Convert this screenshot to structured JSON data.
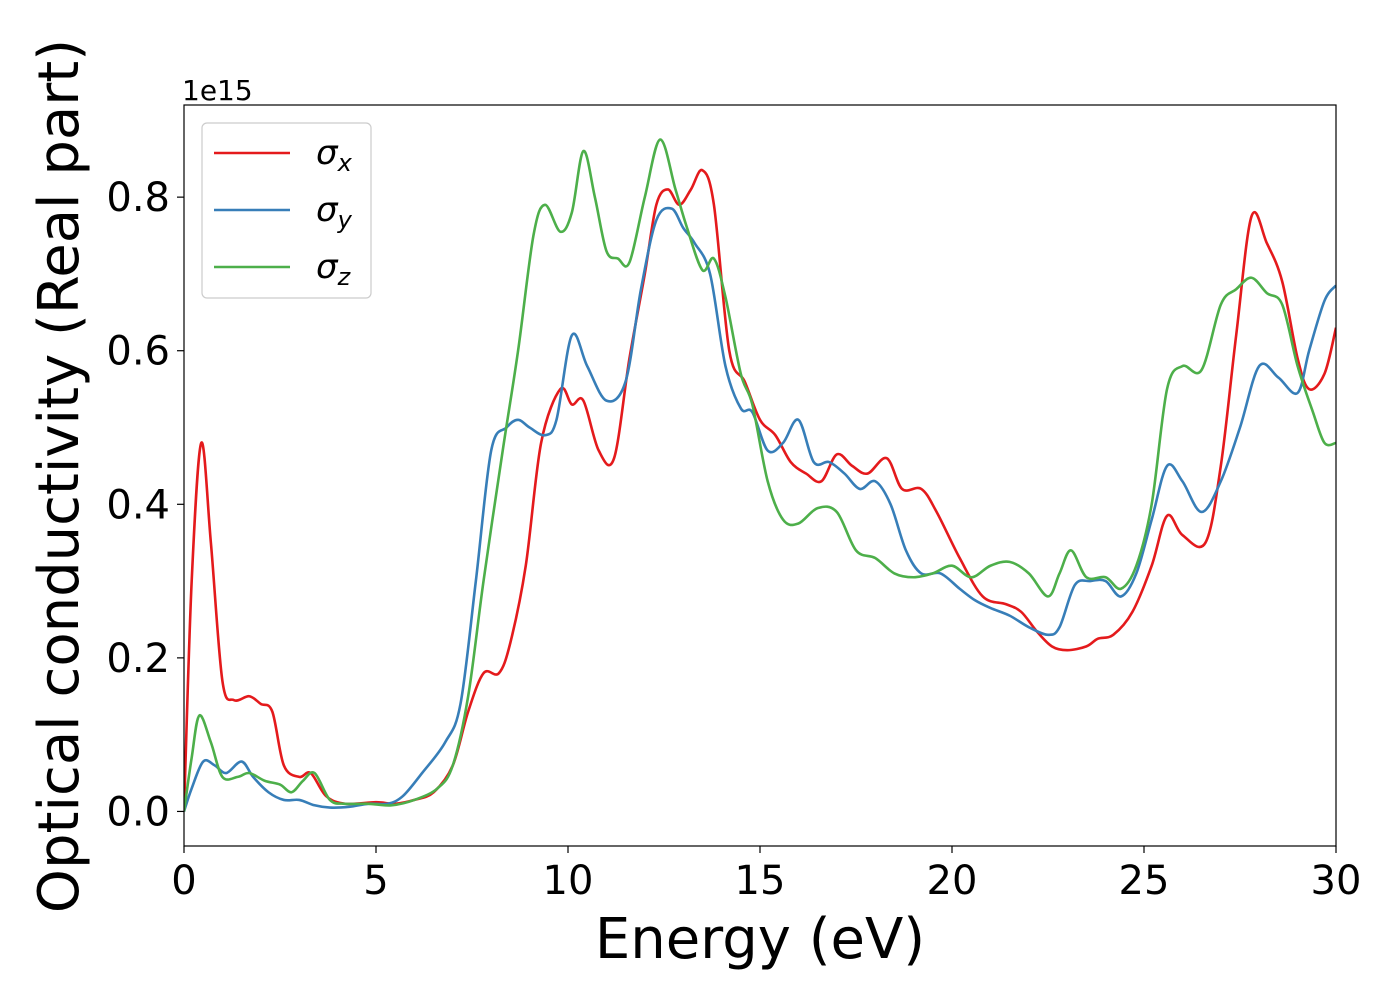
{
  "chart_data": {
    "type": "line",
    "xlabel": "Energy (eV)",
    "ylabel": "Optical conductivity (Real part)",
    "offset_label": "1e15",
    "xlim": [
      0,
      30
    ],
    "ylim": [
      -0.045,
      0.92
    ],
    "xticks": [
      0,
      5,
      10,
      15,
      20,
      25,
      30
    ],
    "xtick_labels": [
      "0",
      "5",
      "10",
      "15",
      "20",
      "25",
      "30"
    ],
    "yticks": [
      0.0,
      0.2,
      0.4,
      0.6,
      0.8
    ],
    "ytick_labels": [
      "0.0",
      "0.2",
      "0.4",
      "0.6",
      "0.8"
    ],
    "grid": false,
    "legend_position": "top-left",
    "series": [
      {
        "name": "σx",
        "base": "σ",
        "sub": "x",
        "color": "#e41a1c",
        "points": [
          [
            0,
            0.0
          ],
          [
            0.2,
            0.3
          ],
          [
            0.45,
            0.48
          ],
          [
            0.7,
            0.35
          ],
          [
            1.0,
            0.17
          ],
          [
            1.3,
            0.145
          ],
          [
            1.7,
            0.15
          ],
          [
            2.0,
            0.14
          ],
          [
            2.3,
            0.13
          ],
          [
            2.6,
            0.06
          ],
          [
            3.0,
            0.045
          ],
          [
            3.3,
            0.05
          ],
          [
            3.7,
            0.02
          ],
          [
            4.2,
            0.01
          ],
          [
            5.0,
            0.012
          ],
          [
            5.5,
            0.01
          ],
          [
            6.0,
            0.015
          ],
          [
            6.5,
            0.025
          ],
          [
            7.0,
            0.06
          ],
          [
            7.4,
            0.13
          ],
          [
            7.8,
            0.18
          ],
          [
            8.2,
            0.18
          ],
          [
            8.5,
            0.22
          ],
          [
            8.9,
            0.32
          ],
          [
            9.3,
            0.48
          ],
          [
            9.8,
            0.55
          ],
          [
            10.1,
            0.53
          ],
          [
            10.4,
            0.535
          ],
          [
            10.8,
            0.47
          ],
          [
            11.2,
            0.46
          ],
          [
            11.6,
            0.59
          ],
          [
            12.0,
            0.7
          ],
          [
            12.3,
            0.79
          ],
          [
            12.6,
            0.81
          ],
          [
            12.9,
            0.79
          ],
          [
            13.2,
            0.81
          ],
          [
            13.5,
            0.835
          ],
          [
            13.8,
            0.79
          ],
          [
            14.2,
            0.6
          ],
          [
            14.6,
            0.56
          ],
          [
            15.0,
            0.51
          ],
          [
            15.4,
            0.49
          ],
          [
            15.8,
            0.455
          ],
          [
            16.2,
            0.44
          ],
          [
            16.6,
            0.43
          ],
          [
            17.0,
            0.465
          ],
          [
            17.4,
            0.45
          ],
          [
            17.8,
            0.44
          ],
          [
            18.3,
            0.46
          ],
          [
            18.7,
            0.42
          ],
          [
            19.2,
            0.42
          ],
          [
            19.6,
            0.39
          ],
          [
            20.2,
            0.33
          ],
          [
            20.8,
            0.28
          ],
          [
            21.4,
            0.27
          ],
          [
            21.8,
            0.26
          ],
          [
            22.2,
            0.235
          ],
          [
            22.6,
            0.215
          ],
          [
            23.0,
            0.21
          ],
          [
            23.5,
            0.215
          ],
          [
            23.8,
            0.225
          ],
          [
            24.2,
            0.23
          ],
          [
            24.7,
            0.26
          ],
          [
            25.2,
            0.32
          ],
          [
            25.6,
            0.385
          ],
          [
            26.0,
            0.36
          ],
          [
            26.6,
            0.35
          ],
          [
            27.0,
            0.45
          ],
          [
            27.4,
            0.62
          ],
          [
            27.8,
            0.775
          ],
          [
            28.2,
            0.74
          ],
          [
            28.6,
            0.69
          ],
          [
            29.0,
            0.59
          ],
          [
            29.3,
            0.55
          ],
          [
            29.7,
            0.57
          ],
          [
            30.0,
            0.63
          ]
        ]
      },
      {
        "name": "σy",
        "base": "σ",
        "sub": "y",
        "color": "#377eb8",
        "points": [
          [
            0,
            0.0
          ],
          [
            0.2,
            0.03
          ],
          [
            0.5,
            0.065
          ],
          [
            0.8,
            0.06
          ],
          [
            1.1,
            0.05
          ],
          [
            1.5,
            0.065
          ],
          [
            1.8,
            0.045
          ],
          [
            2.2,
            0.025
          ],
          [
            2.6,
            0.015
          ],
          [
            3.0,
            0.015
          ],
          [
            3.4,
            0.008
          ],
          [
            3.8,
            0.005
          ],
          [
            4.3,
            0.006
          ],
          [
            4.8,
            0.01
          ],
          [
            5.3,
            0.01
          ],
          [
            5.7,
            0.02
          ],
          [
            6.2,
            0.05
          ],
          [
            6.8,
            0.09
          ],
          [
            7.2,
            0.14
          ],
          [
            7.6,
            0.3
          ],
          [
            8.0,
            0.47
          ],
          [
            8.4,
            0.5
          ],
          [
            8.7,
            0.51
          ],
          [
            9.0,
            0.5
          ],
          [
            9.4,
            0.49
          ],
          [
            9.7,
            0.51
          ],
          [
            10.1,
            0.62
          ],
          [
            10.5,
            0.58
          ],
          [
            11.0,
            0.535
          ],
          [
            11.5,
            0.56
          ],
          [
            11.9,
            0.68
          ],
          [
            12.3,
            0.77
          ],
          [
            12.7,
            0.785
          ],
          [
            13.0,
            0.76
          ],
          [
            13.3,
            0.74
          ],
          [
            13.7,
            0.7
          ],
          [
            14.1,
            0.58
          ],
          [
            14.5,
            0.525
          ],
          [
            14.8,
            0.52
          ],
          [
            15.2,
            0.47
          ],
          [
            15.6,
            0.48
          ],
          [
            16.0,
            0.51
          ],
          [
            16.4,
            0.455
          ],
          [
            16.8,
            0.455
          ],
          [
            17.2,
            0.44
          ],
          [
            17.6,
            0.42
          ],
          [
            18.0,
            0.43
          ],
          [
            18.4,
            0.4
          ],
          [
            18.8,
            0.34
          ],
          [
            19.2,
            0.31
          ],
          [
            19.7,
            0.31
          ],
          [
            20.2,
            0.29
          ],
          [
            20.6,
            0.275
          ],
          [
            21.0,
            0.265
          ],
          [
            21.5,
            0.255
          ],
          [
            22.0,
            0.24
          ],
          [
            22.5,
            0.23
          ],
          [
            22.8,
            0.24
          ],
          [
            23.2,
            0.295
          ],
          [
            23.6,
            0.3
          ],
          [
            24.0,
            0.3
          ],
          [
            24.4,
            0.28
          ],
          [
            24.8,
            0.31
          ],
          [
            25.2,
            0.38
          ],
          [
            25.6,
            0.45
          ],
          [
            26.0,
            0.43
          ],
          [
            26.5,
            0.39
          ],
          [
            27.0,
            0.43
          ],
          [
            27.5,
            0.5
          ],
          [
            28.0,
            0.58
          ],
          [
            28.5,
            0.565
          ],
          [
            29.0,
            0.545
          ],
          [
            29.3,
            0.6
          ],
          [
            29.7,
            0.665
          ],
          [
            30.0,
            0.685
          ]
        ]
      },
      {
        "name": "σz",
        "base": "σ",
        "sub": "z",
        "color": "#4daf4a",
        "points": [
          [
            0,
            0.0
          ],
          [
            0.2,
            0.07
          ],
          [
            0.4,
            0.125
          ],
          [
            0.7,
            0.09
          ],
          [
            1.0,
            0.045
          ],
          [
            1.4,
            0.045
          ],
          [
            1.7,
            0.05
          ],
          [
            2.1,
            0.04
          ],
          [
            2.5,
            0.035
          ],
          [
            2.8,
            0.025
          ],
          [
            3.1,
            0.04
          ],
          [
            3.4,
            0.05
          ],
          [
            3.8,
            0.015
          ],
          [
            4.2,
            0.01
          ],
          [
            4.8,
            0.01
          ],
          [
            5.4,
            0.008
          ],
          [
            6.0,
            0.015
          ],
          [
            6.6,
            0.03
          ],
          [
            7.0,
            0.06
          ],
          [
            7.4,
            0.15
          ],
          [
            7.8,
            0.3
          ],
          [
            8.3,
            0.47
          ],
          [
            8.7,
            0.6
          ],
          [
            9.1,
            0.75
          ],
          [
            9.4,
            0.79
          ],
          [
            9.8,
            0.755
          ],
          [
            10.1,
            0.78
          ],
          [
            10.4,
            0.86
          ],
          [
            10.7,
            0.8
          ],
          [
            11.0,
            0.73
          ],
          [
            11.3,
            0.72
          ],
          [
            11.6,
            0.715
          ],
          [
            12.0,
            0.8
          ],
          [
            12.4,
            0.875
          ],
          [
            12.8,
            0.81
          ],
          [
            13.1,
            0.76
          ],
          [
            13.5,
            0.705
          ],
          [
            13.8,
            0.72
          ],
          [
            14.1,
            0.67
          ],
          [
            14.5,
            0.57
          ],
          [
            14.8,
            0.53
          ],
          [
            15.2,
            0.43
          ],
          [
            15.6,
            0.38
          ],
          [
            16.0,
            0.375
          ],
          [
            16.5,
            0.395
          ],
          [
            17.0,
            0.39
          ],
          [
            17.5,
            0.34
          ],
          [
            18.0,
            0.33
          ],
          [
            18.5,
            0.31
          ],
          [
            19.0,
            0.305
          ],
          [
            19.5,
            0.31
          ],
          [
            20.0,
            0.32
          ],
          [
            20.5,
            0.305
          ],
          [
            21.0,
            0.32
          ],
          [
            21.5,
            0.325
          ],
          [
            22.0,
            0.31
          ],
          [
            22.5,
            0.28
          ],
          [
            22.8,
            0.31
          ],
          [
            23.1,
            0.34
          ],
          [
            23.5,
            0.305
          ],
          [
            24.0,
            0.305
          ],
          [
            24.4,
            0.29
          ],
          [
            24.8,
            0.32
          ],
          [
            25.2,
            0.4
          ],
          [
            25.6,
            0.55
          ],
          [
            26.0,
            0.58
          ],
          [
            26.5,
            0.575
          ],
          [
            27.0,
            0.66
          ],
          [
            27.4,
            0.68
          ],
          [
            27.8,
            0.695
          ],
          [
            28.2,
            0.675
          ],
          [
            28.6,
            0.66
          ],
          [
            29.0,
            0.58
          ],
          [
            29.4,
            0.52
          ],
          [
            29.7,
            0.48
          ],
          [
            30.0,
            0.48
          ]
        ]
      }
    ]
  }
}
